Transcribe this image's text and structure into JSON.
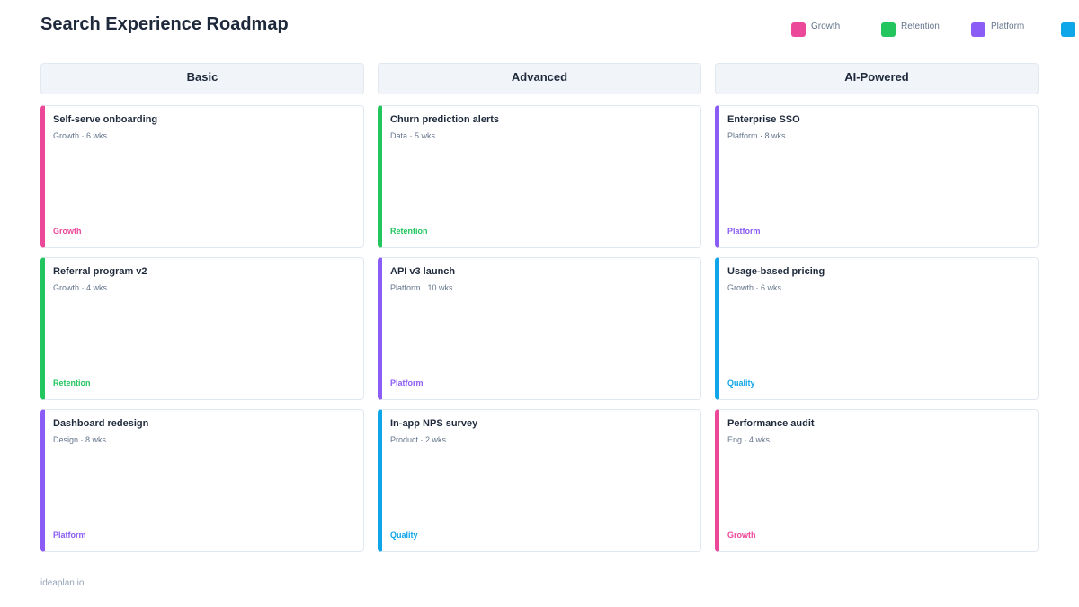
{
  "title": "Search Experience Roadmap",
  "legend": [
    {
      "label": "Growth",
      "color": "#ec4899"
    },
    {
      "label": "Retention",
      "color": "#22c55e"
    },
    {
      "label": "Platform",
      "color": "#8b5cf6"
    },
    {
      "label": "",
      "color": "#0ea5e9"
    }
  ],
  "columns": [
    {
      "title": "Basic",
      "cards": [
        {
          "title": "Self-serve onboarding",
          "meta": "Growth · 6 wks",
          "tag": "Growth",
          "color": "#ec4899"
        },
        {
          "title": "Referral program v2",
          "meta": "Growth · 4 wks",
          "tag": "Retention",
          "color": "#22c55e"
        },
        {
          "title": "Dashboard redesign",
          "meta": "Design · 8 wks",
          "tag": "Platform",
          "color": "#8b5cf6"
        }
      ]
    },
    {
      "title": "Advanced",
      "cards": [
        {
          "title": "Churn prediction alerts",
          "meta": "Data · 5 wks",
          "tag": "Retention",
          "color": "#22c55e"
        },
        {
          "title": "API v3 launch",
          "meta": "Platform · 10 wks",
          "tag": "Platform",
          "color": "#8b5cf6"
        },
        {
          "title": "In-app NPS survey",
          "meta": "Product · 2 wks",
          "tag": "Quality",
          "color": "#0ea5e9"
        }
      ]
    },
    {
      "title": "AI-Powered",
      "cards": [
        {
          "title": "Enterprise SSO",
          "meta": "Platform · 8 wks",
          "tag": "Platform",
          "color": "#8b5cf6"
        },
        {
          "title": "Usage-based pricing",
          "meta": "Growth · 6 wks",
          "tag": "Quality",
          "color": "#0ea5e9"
        },
        {
          "title": "Performance audit",
          "meta": "Eng · 4 wks",
          "tag": "Growth",
          "color": "#ec4899"
        }
      ]
    }
  ],
  "footer": "ideaplan.io"
}
